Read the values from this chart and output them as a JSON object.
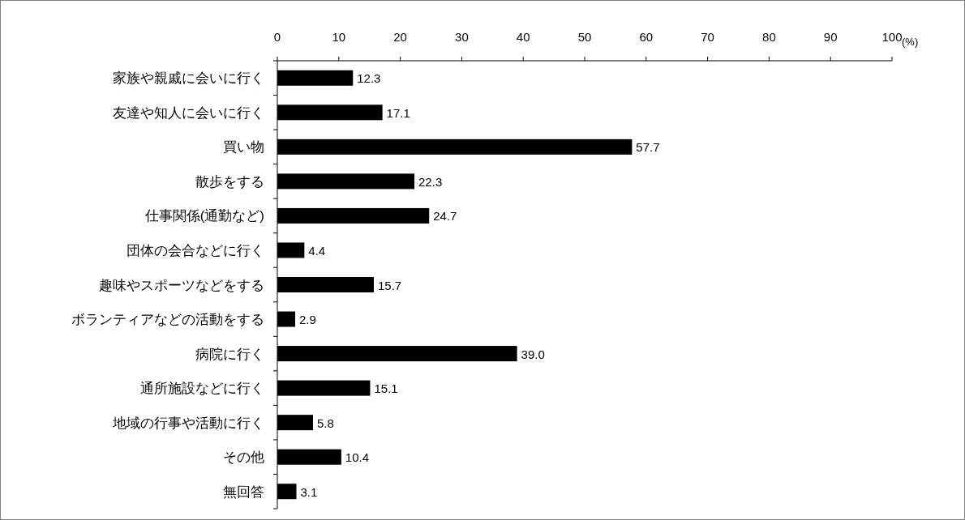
{
  "chart_data": {
    "type": "bar",
    "orientation": "horizontal",
    "xlabel": "(%)",
    "categories": [
      "家族や親戚に会いに行く",
      "友達や知人に会いに行く",
      "買い物",
      "散歩をする",
      "仕事関係(通勤など)",
      "団体の会合などに行く",
      "趣味やスポーツなどをする",
      "ボランティアなどの活動をする",
      "病院に行く",
      "通所施設などに行く",
      "地域の行事や活動に行く",
      "その他",
      "無回答"
    ],
    "values": [
      12.3,
      17.1,
      57.7,
      22.3,
      24.7,
      4.4,
      15.7,
      2.9,
      39.0,
      15.1,
      5.8,
      10.4,
      3.1
    ],
    "value_labels": [
      "12.3",
      "17.1",
      "57.7",
      "22.3",
      "24.7",
      "4.4",
      "15.7",
      "2.9",
      "39.0",
      "15.1",
      "5.8",
      "10.4",
      "3.1"
    ],
    "color": "#000000",
    "xlim": [
      0,
      100
    ],
    "xticks": [
      0,
      10,
      20,
      30,
      40,
      50,
      60,
      70,
      80,
      90,
      100
    ]
  }
}
